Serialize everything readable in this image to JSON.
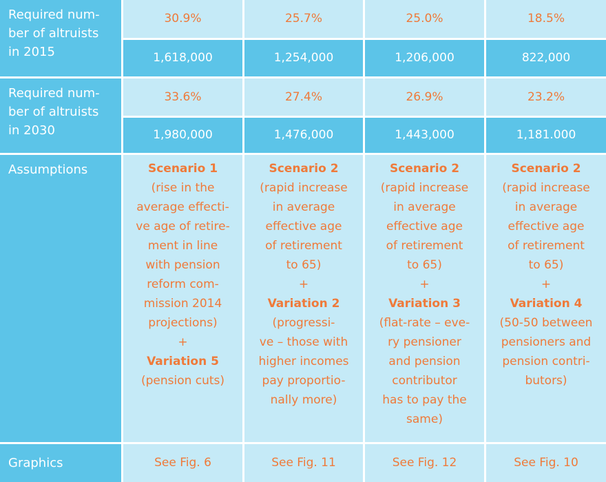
{
  "rows": {
    "r2015": {
      "label": "Required num-\nber of altruists\nin 2015",
      "percentages": [
        "30.9%",
        "25.7%",
        "25.0%",
        "18.5%"
      ],
      "numbers": [
        "1,618,000",
        "1,254,000",
        "1,206,000",
        "822,000"
      ]
    },
    "r2030": {
      "label": "Required num-\nber of altruists\nin 2030",
      "percentages": [
        "33.6%",
        "27.4%",
        "26.9%",
        "23.2%"
      ],
      "numbers": [
        "1,980,000",
        "1,476,000",
        "1,443,000",
        "1,181.000"
      ]
    },
    "assumptions": {
      "label": "Assumptions",
      "columns": [
        [
          {
            "text": "Scenario 1",
            "bold": true
          },
          {
            "text": "(rise in the",
            "bold": false
          },
          {
            "text": "average effecti-",
            "bold": false
          },
          {
            "text": "ve age of retire-",
            "bold": false
          },
          {
            "text": "ment in line",
            "bold": false
          },
          {
            "text": "with pension",
            "bold": false
          },
          {
            "text": "reform com-",
            "bold": false
          },
          {
            "text": "mission 2014",
            "bold": false
          },
          {
            "text": "projections)",
            "bold": false
          },
          {
            "text": "+",
            "bold": false
          },
          {
            "text": "Variation 5",
            "bold": true
          },
          {
            "text": "(pension cuts)",
            "bold": false
          }
        ],
        [
          {
            "text": "Scenario 2",
            "bold": true
          },
          {
            "text": "(rapid increase",
            "bold": false
          },
          {
            "text": "in average",
            "bold": false
          },
          {
            "text": "effective age",
            "bold": false
          },
          {
            "text": "of retirement",
            "bold": false
          },
          {
            "text": "to 65)",
            "bold": false
          },
          {
            "text": "+",
            "bold": false
          },
          {
            "text": "Variation 2",
            "bold": true
          },
          {
            "text": "(progressi-",
            "bold": false
          },
          {
            "text": "ve – those with",
            "bold": false
          },
          {
            "text": "higher incomes",
            "bold": false
          },
          {
            "text": "pay proportio-",
            "bold": false
          },
          {
            "text": "nally more)",
            "bold": false
          }
        ],
        [
          {
            "text": "Scenario 2",
            "bold": true
          },
          {
            "text": "(rapid increase",
            "bold": false
          },
          {
            "text": "in average",
            "bold": false
          },
          {
            "text": "effective age",
            "bold": false
          },
          {
            "text": "of retirement",
            "bold": false
          },
          {
            "text": "to 65)",
            "bold": false
          },
          {
            "text": "+",
            "bold": false
          },
          {
            "text": "Variation 3",
            "bold": true
          },
          {
            "text": "(flat-rate – eve-",
            "bold": false
          },
          {
            "text": "ry pensioner",
            "bold": false
          },
          {
            "text": "and pension",
            "bold": false
          },
          {
            "text": "contributor",
            "bold": false
          },
          {
            "text": "has to pay the",
            "bold": false
          },
          {
            "text": "same)",
            "bold": false
          }
        ],
        [
          {
            "text": "Scenario 2",
            "bold": true
          },
          {
            "text": "(rapid increase",
            "bold": false
          },
          {
            "text": "in average",
            "bold": false
          },
          {
            "text": "effective age",
            "bold": false
          },
          {
            "text": "of retirement",
            "bold": false
          },
          {
            "text": "to 65)",
            "bold": false
          },
          {
            "text": "+",
            "bold": false
          },
          {
            "text": "Variation 4",
            "bold": true
          },
          {
            "text": "(50-50 between",
            "bold": false
          },
          {
            "text": "pensioners and",
            "bold": false
          },
          {
            "text": "pension contri-",
            "bold": false
          },
          {
            "text": "butors)",
            "bold": false
          }
        ]
      ]
    },
    "graphics": {
      "label": "Graphics",
      "values": [
        "See Fig. 6",
        "See Fig. 11",
        "See Fig. 12",
        "See Fig. 10"
      ]
    }
  },
  "colors": {
    "dark_blue": "#5cc4e8",
    "light_blue": "#c5eaf7",
    "orange": "#ef7a3a",
    "white": "#ffffff"
  }
}
